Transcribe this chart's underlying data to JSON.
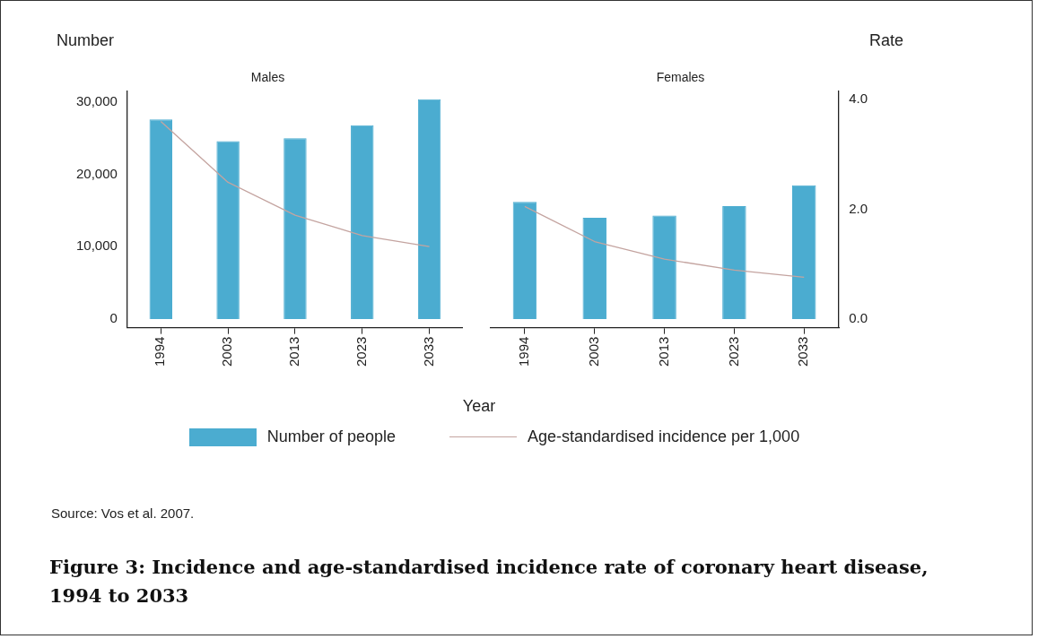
{
  "chart_data": [
    {
      "type": "bar",
      "title": "Males",
      "ylabel": "Number",
      "xlabel": "Year",
      "categories": [
        "1994",
        "2003",
        "2013",
        "2023",
        "2033"
      ],
      "series": [
        {
          "type": "bar",
          "name": "Number of people",
          "color": "#4bacd0",
          "values": [
            27600,
            24600,
            25000,
            26800,
            30400
          ]
        },
        {
          "type": "line",
          "name": "Age-standardised incidence per 1,000",
          "color": "#c4a4a0",
          "axis": "y2",
          "values": [
            3.6,
            2.49,
            1.89,
            1.52,
            1.32
          ]
        }
      ],
      "ylim": [
        -1200,
        31500
      ],
      "yticks": [
        0,
        {
          "value": 10000,
          "label": "10,000"
        },
        {
          "value": 20000,
          "label": "20,000"
        },
        {
          "value": 30000,
          "label": "30,000"
        }
      ],
      "y2lim": [
        -0.16,
        4.15
      ],
      "tick_labels": [
        "x",
        "y"
      ],
      "marker": "none",
      "legend": "bottom",
      "annotations": [
        "Source: Vos et al. 2007.",
        "Figure 3:  Incidence and age-standardised incidence rate of coronary heart disease, 1994 to 2033"
      ]
    },
    {
      "type": "bar",
      "title": "Females",
      "y2label": "Rate",
      "categories": [
        "1994",
        "2003",
        "2013",
        "2023",
        "2033"
      ],
      "series": [
        {
          "type": "bar",
          "color": "#4bacd0",
          "values": [
            16200,
            14000,
            14300,
            15600,
            18500
          ]
        },
        {
          "type": "line",
          "color": "#c4a4a0",
          "axis": "y2",
          "values": [
            2.05,
            1.41,
            1.09,
            0.89,
            0.76
          ]
        }
      ],
      "ylim": [
        -1200,
        31500
      ],
      "y2lim": [
        -0.16,
        4.15
      ],
      "y2ticks": [
        {
          "value": 0,
          "label": "0.0"
        },
        {
          "value": 2,
          "label": "2.0"
        },
        {
          "value": 4,
          "label": "4.0"
        }
      ],
      "tick_labels": [
        "x",
        "y2"
      ],
      "marker": "none"
    }
  ]
}
